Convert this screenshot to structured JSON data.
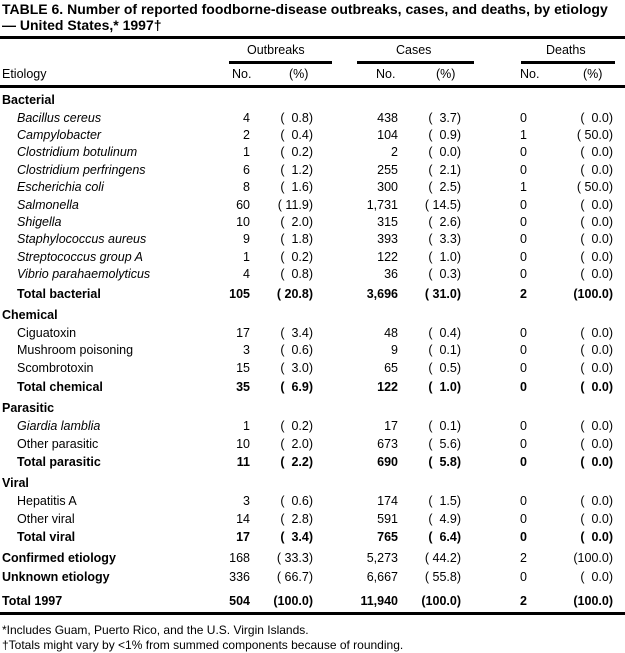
{
  "title": "TABLE 6. Number of reported foodborne-disease  outbreaks, cases, and deaths, by etiology — United States,* 1997†",
  "headers": {
    "etiology": "Etiology",
    "outbreaks": "Outbreaks",
    "cases": "Cases",
    "deaths": "Deaths",
    "no": "No.",
    "pct": "(%)"
  },
  "rows": [
    {
      "type": "group",
      "label": "Bacterial"
    },
    {
      "type": "item",
      "italic": true,
      "label": "Bacillus cereus",
      "values": [
        "4",
        "(  0.8)",
        "438",
        "(  3.7)",
        "0",
        "(  0.0)"
      ]
    },
    {
      "type": "item",
      "italic": true,
      "label": "Campylobacter",
      "values": [
        "2",
        "(  0.4)",
        "104",
        "(  0.9)",
        "1",
        "( 50.0)"
      ]
    },
    {
      "type": "item",
      "italic": true,
      "label": "Clostridium botulinum",
      "values": [
        "1",
        "(  0.2)",
        "2",
        "(  0.0)",
        "0",
        "(  0.0)"
      ]
    },
    {
      "type": "item",
      "italic": true,
      "label": "Clostridium perfringens",
      "values": [
        "6",
        "(  1.2)",
        "255",
        "(  2.1)",
        "0",
        "(  0.0)"
      ]
    },
    {
      "type": "item",
      "italic": true,
      "label": "Escherichia coli",
      "values": [
        "8",
        "(  1.6)",
        "300",
        "(  2.5)",
        "1",
        "( 50.0)"
      ]
    },
    {
      "type": "item",
      "italic": true,
      "label": "Salmonella",
      "values": [
        "60",
        "( 11.9)",
        "1,731",
        "( 14.5)",
        "0",
        "(  0.0)"
      ]
    },
    {
      "type": "item",
      "italic": true,
      "label": "Shigella",
      "values": [
        "10",
        "(  2.0)",
        "315",
        "(  2.6)",
        "0",
        "(  0.0)"
      ]
    },
    {
      "type": "item",
      "italic": true,
      "label": "Staphylococcus aureus",
      "values": [
        "9",
        "(  1.8)",
        "393",
        "(  3.3)",
        "0",
        "(  0.0)"
      ]
    },
    {
      "type": "item",
      "italic": true,
      "label": "Streptococcus group A",
      "values": [
        "1",
        "(  0.2)",
        "122",
        "(  1.0)",
        "0",
        "(  0.0)"
      ]
    },
    {
      "type": "item",
      "italic": true,
      "label": "Vibrio parahaemolyticus",
      "values": [
        "4",
        "(  0.8)",
        "36",
        "(  0.3)",
        "0",
        "(  0.0)"
      ]
    },
    {
      "type": "total",
      "label": "Total bacterial",
      "values": [
        "105",
        "( 20.8)",
        "3,696",
        "( 31.0)",
        "2",
        "(100.0)"
      ]
    },
    {
      "type": "group",
      "label": "Chemical"
    },
    {
      "type": "item",
      "label": "Ciguatoxin",
      "values": [
        "17",
        "(  3.4)",
        "48",
        "(  0.4)",
        "0",
        "(  0.0)"
      ]
    },
    {
      "type": "item",
      "label": "Mushroom poisoning",
      "values": [
        "3",
        "(  0.6)",
        "9",
        "(  0.1)",
        "0",
        "(  0.0)"
      ]
    },
    {
      "type": "item",
      "label": "Scombrotoxin",
      "values": [
        "15",
        "(  3.0)",
        "65",
        "(  0.5)",
        "0",
        "(  0.0)"
      ]
    },
    {
      "type": "total",
      "label": "Total chemical",
      "values": [
        "35",
        "(  6.9)",
        "122",
        "(  1.0)",
        "0",
        "(  0.0)"
      ]
    },
    {
      "type": "group",
      "label": "Parasitic"
    },
    {
      "type": "item",
      "italic": true,
      "label": "Giardia lamblia",
      "values": [
        "1",
        "(  0.2)",
        "17",
        "(  0.1)",
        "0",
        "(  0.0)"
      ]
    },
    {
      "type": "item",
      "label": "Other parasitic",
      "values": [
        "10",
        "(  2.0)",
        "673",
        "(  5.6)",
        "0",
        "(  0.0)"
      ]
    },
    {
      "type": "total",
      "label": "Total parasitic",
      "values": [
        "11",
        "(  2.2)",
        "690",
        "(  5.8)",
        "0",
        "(  0.0)"
      ]
    },
    {
      "type": "group",
      "label": "Viral"
    },
    {
      "type": "item",
      "label": "Hepatitis A",
      "values": [
        "3",
        "(  0.6)",
        "174",
        "(  1.5)",
        "0",
        "(  0.0)"
      ]
    },
    {
      "type": "item",
      "label": "Other viral",
      "values": [
        "14",
        "(  2.8)",
        "591",
        "(  4.9)",
        "0",
        "(  0.0)"
      ]
    },
    {
      "type": "total",
      "label": "Total viral",
      "values": [
        "17",
        "(  3.4)",
        "765",
        "(  6.4)",
        "0",
        "(  0.0)"
      ]
    },
    {
      "type": "summary",
      "label": "Confirmed etiology",
      "values": [
        "168",
        "( 33.3)",
        "5,273",
        "( 44.2)",
        "2",
        "(100.0)"
      ]
    },
    {
      "type": "summary",
      "label": "Unknown etiology",
      "values": [
        "336",
        "( 66.7)",
        "6,667",
        "( 55.8)",
        "0",
        "(  0.0)"
      ]
    },
    {
      "type": "grand",
      "label": "Total 1997",
      "values": [
        "504",
        "(100.0)",
        "11,940",
        "(100.0)",
        "2",
        "(100.0)"
      ]
    }
  ],
  "footnotes": [
    "*Includes Guam, Puerto Rico, and the U.S. Virgin Islands.",
    "†Totals might vary by <1% from summed components because of rounding."
  ]
}
